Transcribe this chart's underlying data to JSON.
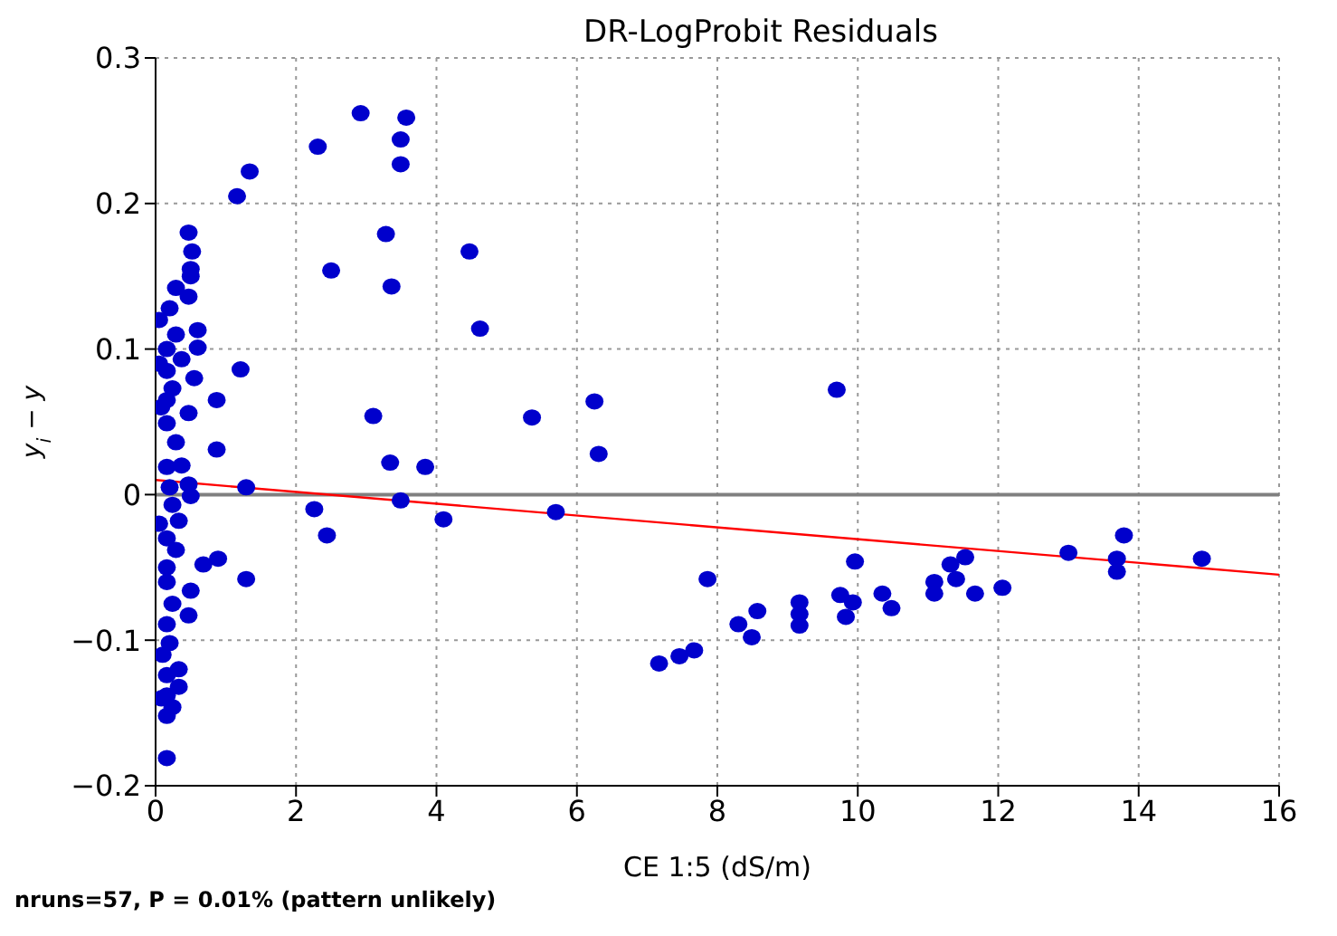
{
  "chart_data": {
    "type": "scatter",
    "title": "DR-LogProbit Residuals",
    "xlabel": "CE 1:5 (dS/m)",
    "ylabel": "y$_{i}$ − y",
    "annotations": [
      "nruns=57, P = 0.01% (pattern unlikely)"
    ],
    "xlim": [
      0,
      16
    ],
    "xticks": [
      0,
      2,
      4,
      6,
      8,
      10,
      12,
      14,
      16
    ],
    "ylim": [
      -0.2,
      0.3
    ],
    "yticks": [
      -0.2,
      -0.1,
      0,
      0.1,
      0.2,
      0.3
    ],
    "grid": true,
    "marker": "circle",
    "ref_lines": [
      {
        "axis": "y",
        "value": 0,
        "color": "#808080"
      }
    ],
    "series": [
      {
        "color": "#0000cc",
        "x": [
          2.92,
          3.57,
          3.49,
          3.49,
          2.31,
          1.34,
          1.16,
          3.28,
          4.47,
          2.5,
          3.36,
          4.62,
          1.21,
          3.1,
          3.34,
          3.84,
          1.29,
          3.49,
          2.26,
          2.44,
          4.1,
          1.29,
          0.89,
          0.68,
          0.87,
          0.87,
          0.47,
          0.52,
          0.5,
          0.5,
          0.29,
          0.47,
          0.2,
          0.6,
          0.29,
          0.6,
          0.16,
          0.37,
          0.16,
          0.55,
          0.24,
          0.16,
          0.47,
          0.16,
          0.29,
          0.16,
          0.37,
          0.47,
          0.2,
          0.5,
          0.24,
          0.33,
          0.16,
          0.29,
          0.16,
          0.16,
          0.5,
          0.24,
          0.47,
          0.16,
          0.2,
          0.33,
          0.16,
          0.33,
          0.16,
          0.24,
          0.16,
          0.16,
          0.05,
          0.08,
          0.05,
          0.1,
          0.05,
          0.08,
          5.36,
          6.25,
          6.31,
          5.7,
          9.7,
          7.86,
          7.17,
          7.46,
          7.67,
          8.3,
          8.49,
          8.57,
          9.17,
          9.17,
          9.17,
          9.96,
          9.75,
          9.93,
          9.83,
          10.35,
          10.48,
          11.09,
          11.09,
          11.32,
          11.53,
          11.4,
          11.67,
          12.06,
          13.0,
          13.79,
          13.69,
          13.69,
          14.9
        ],
        "values": [
          0.262,
          0.259,
          0.244,
          0.227,
          0.239,
          0.222,
          0.205,
          0.179,
          0.167,
          0.154,
          0.143,
          0.114,
          0.086,
          0.054,
          0.022,
          0.019,
          0.005,
          -0.004,
          -0.01,
          -0.028,
          -0.017,
          -0.058,
          -0.044,
          -0.048,
          0.031,
          0.065,
          0.18,
          0.167,
          0.155,
          0.15,
          0.142,
          0.136,
          0.128,
          0.113,
          0.11,
          0.101,
          0.1,
          0.093,
          0.085,
          0.08,
          0.073,
          0.065,
          0.056,
          0.049,
          0.036,
          0.019,
          0.02,
          0.007,
          0.005,
          -0.001,
          -0.007,
          -0.018,
          -0.03,
          -0.038,
          -0.05,
          -0.06,
          -0.066,
          -0.075,
          -0.083,
          -0.089,
          -0.102,
          -0.12,
          -0.124,
          -0.132,
          -0.138,
          -0.146,
          -0.152,
          -0.181,
          0.12,
          0.06,
          -0.02,
          -0.11,
          0.09,
          -0.14,
          0.053,
          0.064,
          0.028,
          -0.012,
          0.072,
          -0.058,
          -0.116,
          -0.111,
          -0.107,
          -0.089,
          -0.098,
          -0.08,
          -0.074,
          -0.082,
          -0.09,
          -0.046,
          -0.069,
          -0.074,
          -0.084,
          -0.068,
          -0.078,
          -0.06,
          -0.068,
          -0.048,
          -0.043,
          -0.058,
          -0.068,
          -0.064,
          -0.04,
          -0.028,
          -0.044,
          -0.053,
          -0.044
        ]
      },
      {
        "type": "line",
        "color": "#ff0000",
        "x": [
          0,
          16
        ],
        "values": [
          0.01,
          -0.055
        ],
        "marker": "none"
      }
    ]
  }
}
